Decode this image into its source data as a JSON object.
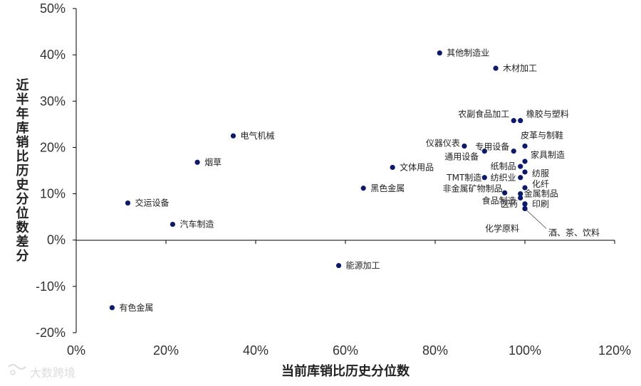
{
  "chart_data": {
    "type": "scatter",
    "title": "",
    "xlabel": "当前库销比历史分位数",
    "ylabel": "近半年库销比历史分位数差分",
    "xlim": [
      0,
      1.2
    ],
    "ylim": [
      -0.2,
      0.5
    ],
    "x_ticks": [
      {
        "value": 0,
        "label": "0%"
      },
      {
        "value": 0.2,
        "label": "20%"
      },
      {
        "value": 0.4,
        "label": "40%"
      },
      {
        "value": 0.6,
        "label": "60%"
      },
      {
        "value": 0.8,
        "label": "80%"
      },
      {
        "value": 1.0,
        "label": "100%"
      },
      {
        "value": 1.2,
        "label": "120%"
      }
    ],
    "y_ticks": [
      {
        "value": 0.5,
        "label": "50%"
      },
      {
        "value": 0.4,
        "label": "40%"
      },
      {
        "value": 0.3,
        "label": "30%"
      },
      {
        "value": 0.2,
        "label": "20%"
      },
      {
        "value": 0.1,
        "label": "10%"
      },
      {
        "value": 0,
        "label": "0%"
      },
      {
        "value": -0.1,
        "label": "-10%"
      },
      {
        "value": -0.2,
        "label": "-20%"
      }
    ],
    "grid": false,
    "marker_color": "#0d1a6b",
    "points": [
      {
        "label": "其他制造业",
        "x": 0.81,
        "y": 0.404
      },
      {
        "label": "木材加工",
        "x": 0.935,
        "y": 0.371
      },
      {
        "label": "农副食品加工",
        "x": 0.975,
        "y": 0.258
      },
      {
        "label": "橡胶与塑料",
        "x": 0.99,
        "y": 0.258
      },
      {
        "label": "电气机械",
        "x": 0.35,
        "y": 0.225
      },
      {
        "label": "皮革与制鞋",
        "x": 1.0,
        "y": 0.203
      },
      {
        "label": "仪器仪表",
        "x": 0.865,
        "y": 0.203
      },
      {
        "label": "专用设备",
        "x": 0.975,
        "y": 0.192
      },
      {
        "label": "通用设备",
        "x": 0.91,
        "y": 0.192
      },
      {
        "label": "家具制造",
        "x": 1.0,
        "y": 0.17
      },
      {
        "label": "烟草",
        "x": 0.27,
        "y": 0.168
      },
      {
        "label": "纸制品",
        "x": 0.99,
        "y": 0.159
      },
      {
        "label": "文体用品",
        "x": 0.705,
        "y": 0.157
      },
      {
        "label": "纺服",
        "x": 1.0,
        "y": 0.147
      },
      {
        "label": "TMT制造",
        "x": 0.91,
        "y": 0.135
      },
      {
        "label": "纺织业",
        "x": 0.99,
        "y": 0.135
      },
      {
        "label": "化纤",
        "x": 1.0,
        "y": 0.113
      },
      {
        "label": "黑色金属",
        "x": 0.64,
        "y": 0.112
      },
      {
        "label": "非金属矿物制品",
        "x": 0.955,
        "y": 0.102
      },
      {
        "label": "金属制品",
        "x": 0.99,
        "y": 0.1
      },
      {
        "label": "食品制造",
        "x": 0.99,
        "y": 0.091
      },
      {
        "label": "交运设备",
        "x": 0.115,
        "y": 0.08
      },
      {
        "label": "医药",
        "x": 1.0,
        "y": 0.078
      },
      {
        "label": "印刷",
        "x": 1.0,
        "y": 0.078
      },
      {
        "label": "酒、茶、饮料",
        "x": 1.0,
        "y": 0.068
      },
      {
        "label": "化学原料",
        "x": 1.0,
        "y": 0.068
      },
      {
        "label": "汽车制造",
        "x": 0.215,
        "y": 0.034
      },
      {
        "label": "能源加工",
        "x": 0.585,
        "y": -0.055
      },
      {
        "label": "有色金属",
        "x": 0.08,
        "y": -0.146
      }
    ]
  },
  "watermark": "大数跨境"
}
